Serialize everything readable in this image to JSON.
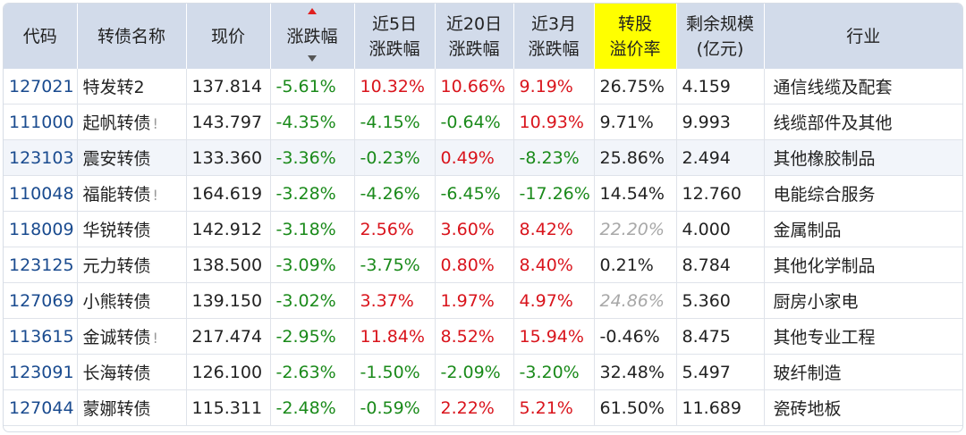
{
  "columns": [
    {
      "label": "代码"
    },
    {
      "label": "转债名称"
    },
    {
      "label": "现价"
    },
    {
      "label": "涨跌幅"
    },
    {
      "label_line1": "近5日",
      "label_line2": "涨跌幅"
    },
    {
      "label_line1": "近20日",
      "label_line2": "涨跌幅"
    },
    {
      "label_line1": "近3月",
      "label_line2": "涨跌幅"
    },
    {
      "label_line1": "转股",
      "label_line2": "溢价率"
    },
    {
      "label_line1": "剩余规模",
      "label_line2": "(亿元)"
    },
    {
      "label": "行业"
    }
  ],
  "colors": {
    "red": "#d9141c",
    "green": "#1a8a1a",
    "code_blue": "#1a4b8f",
    "header_bg": "#d2dbea",
    "highlight": "#ffff00"
  },
  "rows": [
    {
      "code": "127021",
      "name": "特发转2",
      "flag": "",
      "price": "137.814",
      "chg": "-5.61%",
      "chg5": "10.32%",
      "chg20": "10.66%",
      "chg3m": "9.19%",
      "premium": "26.75%",
      "premium_style": "normal",
      "scale": "4.159",
      "industry": "通信线缆及配套"
    },
    {
      "code": "111000",
      "name": "起帆转债",
      "flag": "!",
      "price": "143.797",
      "chg": "-4.35%",
      "chg5": "-4.15%",
      "chg20": "-0.64%",
      "chg3m": "10.93%",
      "premium": "9.71%",
      "premium_style": "normal",
      "scale": "9.993",
      "industry": "线缆部件及其他"
    },
    {
      "code": "123103",
      "name": "震安转债",
      "flag": "",
      "price": "133.360",
      "chg": "-3.36%",
      "chg5": "-0.23%",
      "chg20": "0.49%",
      "chg3m": "-8.23%",
      "premium": "25.86%",
      "premium_style": "normal",
      "scale": "2.494",
      "industry": "其他橡胶制品"
    },
    {
      "code": "110048",
      "name": "福能转债",
      "flag": "!",
      "price": "164.619",
      "chg": "-3.28%",
      "chg5": "-4.26%",
      "chg20": "-6.45%",
      "chg3m": "-17.26%",
      "premium": "14.54%",
      "premium_style": "normal",
      "scale": "12.760",
      "industry": "电能综合服务"
    },
    {
      "code": "118009",
      "name": "华锐转债",
      "flag": "",
      "price": "142.912",
      "chg": "-3.18%",
      "chg5": "2.56%",
      "chg20": "3.60%",
      "chg3m": "8.42%",
      "premium": "22.20%",
      "premium_style": "muted",
      "scale": "4.000",
      "industry": "金属制品"
    },
    {
      "code": "123125",
      "name": "元力转债",
      "flag": "",
      "price": "138.500",
      "chg": "-3.09%",
      "chg5": "-3.75%",
      "chg20": "0.80%",
      "chg3m": "8.40%",
      "premium": "0.21%",
      "premium_style": "normal",
      "scale": "8.784",
      "industry": "其他化学制品"
    },
    {
      "code": "127069",
      "name": "小熊转债",
      "flag": "",
      "price": "139.150",
      "chg": "-3.02%",
      "chg5": "3.37%",
      "chg20": "1.97%",
      "chg3m": "4.97%",
      "premium": "24.86%",
      "premium_style": "muted",
      "scale": "5.360",
      "industry": "厨房小家电"
    },
    {
      "code": "113615",
      "name": "金诚转债",
      "flag": "!",
      "price": "217.474",
      "chg": "-2.95%",
      "chg5": "11.84%",
      "chg20": "8.52%",
      "chg3m": "15.94%",
      "premium": "-0.46%",
      "premium_style": "normal",
      "scale": "8.475",
      "industry": "其他专业工程"
    },
    {
      "code": "123091",
      "name": "长海转债",
      "flag": "",
      "price": "126.100",
      "chg": "-2.63%",
      "chg5": "-1.50%",
      "chg20": "-2.09%",
      "chg3m": "-3.20%",
      "premium": "32.48%",
      "premium_style": "normal",
      "scale": "5.497",
      "industry": "玻纤制造"
    },
    {
      "code": "127044",
      "name": "蒙娜转债",
      "flag": "",
      "price": "115.311",
      "chg": "-2.48%",
      "chg5": "-0.59%",
      "chg20": "2.22%",
      "chg3m": "5.21%",
      "premium": "61.50%",
      "premium_style": "normal",
      "scale": "11.689",
      "industry": "瓷砖地板"
    }
  ]
}
